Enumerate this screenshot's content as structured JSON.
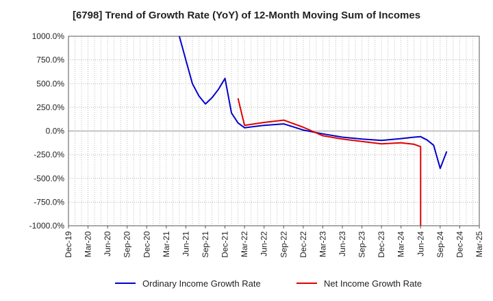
{
  "chart_data": {
    "type": "line",
    "title": "[6798]  Trend of Growth Rate (YoY) of 12-Month Moving Sum of Incomes",
    "xlabel": "",
    "ylabel": "",
    "ylim": [
      -1000,
      1000
    ],
    "grid": true,
    "legend_position": "bottom",
    "y_ticks": [
      "1000.0%",
      "750.0%",
      "500.0%",
      "250.0%",
      "0.0%",
      "-250.0%",
      "-500.0%",
      "-750.0%",
      "-1000.0%"
    ],
    "y_tick_values": [
      1000,
      750,
      500,
      250,
      0,
      -250,
      -500,
      -750,
      -1000
    ],
    "x_ticks": [
      "Dec-19",
      "Mar-20",
      "Jun-20",
      "Sep-20",
      "Dec-20",
      "Mar-21",
      "Jun-21",
      "Sep-21",
      "Dec-21",
      "Mar-22",
      "Jun-22",
      "Sep-22",
      "Dec-22",
      "Mar-23",
      "Jun-23",
      "Sep-23",
      "Dec-23",
      "Mar-24",
      "Jun-24",
      "Sep-24",
      "Dec-24",
      "Mar-25"
    ],
    "series": [
      {
        "name": "Ordinary Income Growth Rate",
        "color": "#0000cc",
        "points": [
          [
            "May-21",
            1000
          ],
          [
            "Jun-21",
            750
          ],
          [
            "Jul-21",
            500
          ],
          [
            "Aug-21",
            370
          ],
          [
            "Sep-21",
            285
          ],
          [
            "Oct-21",
            350
          ],
          [
            "Nov-21",
            440
          ],
          [
            "Dec-21",
            555
          ],
          [
            "Jan-22",
            190
          ],
          [
            "Feb-22",
            85
          ],
          [
            "Mar-22",
            35
          ],
          [
            "Jun-22",
            60
          ],
          [
            "Sep-22",
            75
          ],
          [
            "Dec-22",
            10
          ],
          [
            "Mar-23",
            -30
          ],
          [
            "Jun-23",
            -65
          ],
          [
            "Sep-23",
            -85
          ],
          [
            "Dec-23",
            -100
          ],
          [
            "Mar-24",
            -80
          ],
          [
            "May-24",
            -65
          ],
          [
            "Jun-24",
            -60
          ],
          [
            "Jul-24",
            -95
          ],
          [
            "Aug-24",
            -150
          ],
          [
            "Sep-24",
            -395
          ],
          [
            "Oct-24",
            -215
          ]
        ]
      },
      {
        "name": "Net Income Growth Rate",
        "color": "#dd0000",
        "points": [
          [
            "Feb-22",
            345
          ],
          [
            "Mar-22",
            60
          ],
          [
            "Jun-22",
            90
          ],
          [
            "Sep-22",
            115
          ],
          [
            "Dec-22",
            40
          ],
          [
            "Mar-23",
            -50
          ],
          [
            "Jun-23",
            -85
          ],
          [
            "Sep-23",
            -110
          ],
          [
            "Dec-23",
            -135
          ],
          [
            "Mar-24",
            -125
          ],
          [
            "May-24",
            -140
          ],
          [
            "Jun-24",
            -165
          ],
          [
            "Jun-24",
            -1000
          ]
        ]
      }
    ]
  }
}
